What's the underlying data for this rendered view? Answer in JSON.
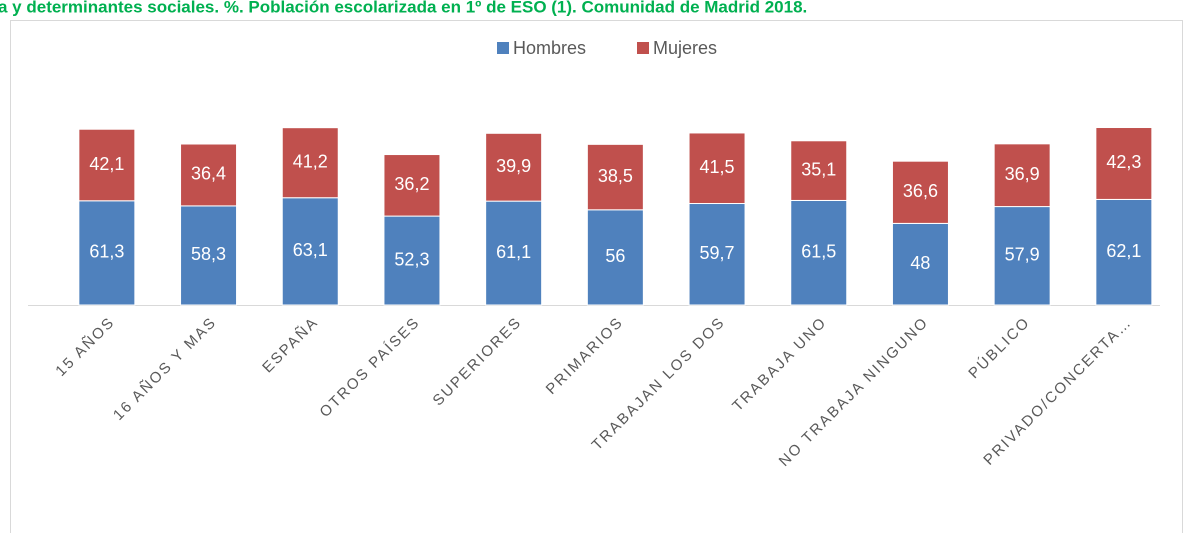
{
  "chart_data": {
    "type": "bar",
    "stacked": true,
    "title": "a y determinantes sociales. %. Población escolarizada en 1º de ESO (1). Comunidad de Madrid 2018.",
    "categories": [
      "15 AÑOS",
      "16 AÑOS  Y MAS",
      "ESPAÑA",
      "OTROS PAÍSES",
      "SUPERIORES",
      "PRIMARIOS",
      "TRABAJAN LOS DOS",
      "TRABAJA UNO",
      "NO TRABAJA NINGUNO",
      "PÚBLICO",
      "PRIVADO/CONCERTA…"
    ],
    "series": [
      {
        "name": "Hombres",
        "color": "#4f81bd",
        "values": [
          61.3,
          58.3,
          63.1,
          52.3,
          61.1,
          56,
          59.7,
          61.5,
          48,
          57.9,
          62.1
        ],
        "value_labels": [
          "61,3",
          "58,3",
          "63,1",
          "52,3",
          "61,1",
          "56",
          "59,7",
          "61,5",
          "48",
          "57,9",
          "62,1"
        ]
      },
      {
        "name": "Mujeres",
        "color": "#c0504d",
        "values": [
          42.1,
          36.4,
          41.2,
          36.2,
          39.9,
          38.5,
          41.5,
          35.1,
          36.6,
          36.9,
          42.3
        ],
        "value_labels": [
          "42,1",
          "36,4",
          "41,2",
          "36,2",
          "39,9",
          "38,5",
          "41,5",
          "35,1",
          "36,6",
          "36,9",
          "42,3"
        ]
      }
    ],
    "ylim": [
      0,
      120
    ],
    "legend": "top"
  }
}
